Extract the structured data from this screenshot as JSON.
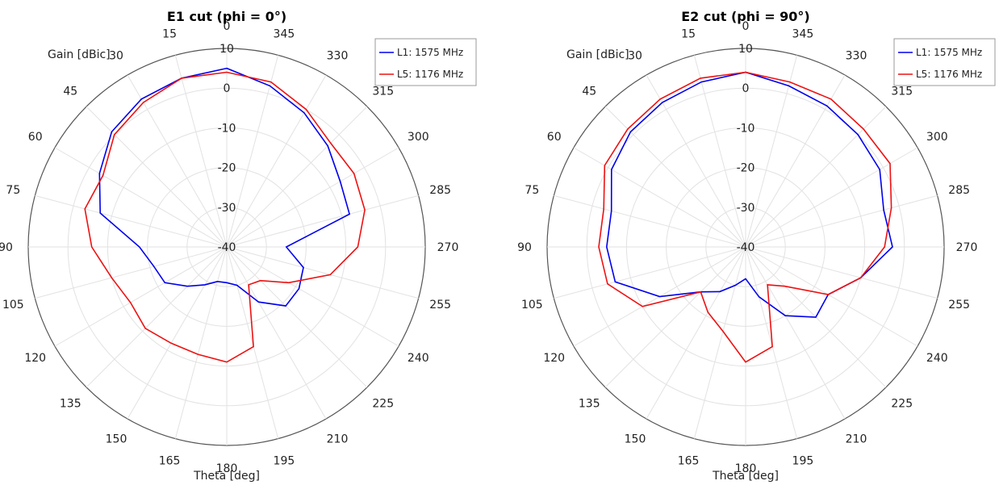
{
  "chart_data": [
    {
      "type": "polar-line",
      "title": "E1 cut (phi = 0°)",
      "radial_label": "Gain [dBic]",
      "angular_label": "Theta [deg]",
      "rlim": [
        -40,
        10
      ],
      "radial_ticks": [
        "10",
        "0",
        "-10",
        "-20",
        "-30",
        "-40"
      ],
      "angle_ticks": [
        "0",
        "15",
        "30",
        "45",
        "60",
        "75",
        "90",
        "105",
        "120",
        "135",
        "150",
        "165",
        "180",
        "195",
        "210",
        "225",
        "240",
        "255",
        "270",
        "285",
        "300",
        "315",
        "330",
        "345"
      ],
      "grid": true,
      "legend_position": "top-right",
      "theta": [
        0,
        15,
        30,
        45,
        60,
        75,
        90,
        105,
        120,
        135,
        150,
        165,
        180,
        195,
        210,
        225,
        240,
        255,
        270,
        285,
        300,
        315,
        330,
        345
      ],
      "series": [
        {
          "name": "L1: 1575 MHz",
          "color": "#0000ee",
          "values": [
            5,
            4,
            3,
            1,
            -3,
            -7,
            -18,
            -21,
            -22,
            -26,
            -29,
            -31,
            -31,
            -30,
            -24,
            -19,
            -19,
            -20,
            -25,
            -8,
            -7,
            -4,
            -1,
            2
          ]
        },
        {
          "name": "L5: 1176 MHz",
          "color": "#ee1111",
          "values": [
            4,
            4,
            2,
            0,
            -4,
            -3,
            -6,
            -10,
            -12,
            -11,
            -12,
            -12,
            -11,
            -14,
            -29,
            -28,
            -22,
            -13,
            -7,
            -4,
            -3,
            -3,
            0,
            3
          ]
        }
      ]
    },
    {
      "type": "polar-line",
      "title": "E2 cut (phi = 90°)",
      "radial_label": "Gain [dBic]",
      "angular_label": "Theta [deg]",
      "rlim": [
        -40,
        10
      ],
      "radial_ticks": [
        "10",
        "0",
        "-10",
        "-20",
        "-30",
        "-40"
      ],
      "angle_ticks": [
        "0",
        "15",
        "30",
        "45",
        "60",
        "75",
        "90",
        "105",
        "120",
        "135",
        "150",
        "165",
        "180",
        "195",
        "210",
        "225",
        "240",
        "255",
        "270",
        "285",
        "300",
        "315",
        "330",
        "345"
      ],
      "grid": true,
      "legend_position": "top-right",
      "theta": [
        0,
        15,
        30,
        45,
        60,
        75,
        90,
        105,
        120,
        135,
        150,
        165,
        180,
        195,
        210,
        225,
        240,
        255,
        270,
        285,
        300,
        315,
        330,
        345
      ],
      "series": [
        {
          "name": "L1: 1575 MHz",
          "color": "#0000ee",
          "values": [
            4,
            3,
            2,
            1,
            -1,
            -5,
            -5,
            -6,
            -15,
            -24,
            -27,
            -30,
            -32,
            -27,
            -20,
            -15,
            -16,
            -10,
            -3,
            -4,
            -1,
            0,
            1,
            2
          ]
        },
        {
          "name": "L5: 1176 MHz",
          "color": "#ee1111",
          "values": [
            4,
            4,
            3,
            2,
            1,
            -3,
            -3,
            -4,
            -10,
            -24,
            -21,
            -18,
            -11,
            -14,
            -29,
            -26,
            -16,
            -10,
            -5,
            -2,
            2,
            2,
            3,
            3
          ]
        }
      ]
    }
  ]
}
